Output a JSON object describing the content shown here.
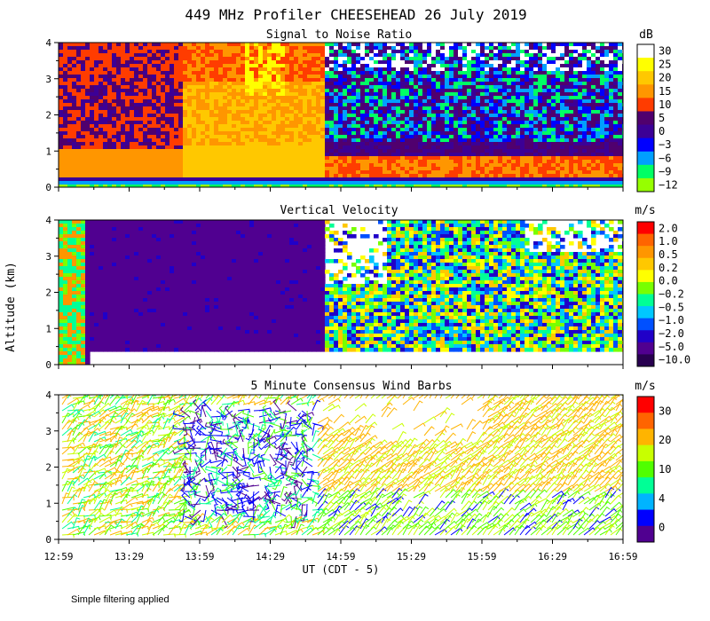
{
  "title": "449 MHz Profiler CHEESEHEAD 26 July 2019",
  "ylabel": "Altitude (km)",
  "xlabel": "UT  (CDT - 5)",
  "footer": "Simple filtering applied",
  "x_ticks": [
    "12:59",
    "13:29",
    "13:59",
    "14:29",
    "14:59",
    "15:29",
    "15:59",
    "16:29",
    "16:59"
  ],
  "y_ticks": [
    "0",
    "1",
    "2",
    "3",
    "4"
  ],
  "chart_data": [
    {
      "type": "heatmap",
      "title": "Signal to Noise Ratio",
      "unit": "dB",
      "ylim": [
        0,
        4
      ],
      "colorbar": {
        "labels": [
          "30",
          "25",
          "20",
          "15",
          "10",
          "5",
          "0",
          "−3",
          "−6",
          "−9",
          "−12"
        ],
        "colors": [
          "#ffffff",
          "#ffff00",
          "#ffc800",
          "#ff9600",
          "#ff3c00",
          "#50006e",
          "#3c0096",
          "#0000ff",
          "#00a0ff",
          "#00ff64",
          "#96ff00"
        ]
      }
    },
    {
      "type": "heatmap",
      "title": "Vertical Velocity",
      "unit": "m/s",
      "ylim": [
        0,
        4
      ],
      "colorbar": {
        "labels": [
          "2.0",
          "1.0",
          "0.5",
          "0.2",
          "0.0",
          "−0.2",
          "−0.5",
          "−1.0",
          "−2.0",
          "−5.0",
          "−10.0"
        ],
        "colors": [
          "#ff0000",
          "#ff6400",
          "#ff9600",
          "#ffc800",
          "#ffff00",
          "#78ff00",
          "#00ff96",
          "#00c8ff",
          "#0050ff",
          "#2000c8",
          "#500090",
          "#280050"
        ]
      }
    },
    {
      "type": "scatter",
      "title": "5 Minute Consensus Wind Barbs",
      "unit": "m/s",
      "ylim": [
        0,
        4
      ],
      "colorbar": {
        "labels": [
          "30",
          "20",
          "10",
          "4",
          "0"
        ],
        "colors": [
          "#ff0000",
          "#ff6400",
          "#ffb400",
          "#c8ff00",
          "#50ff00",
          "#00ff96",
          "#00b4ff",
          "#0000ff",
          "#500090"
        ]
      }
    }
  ]
}
